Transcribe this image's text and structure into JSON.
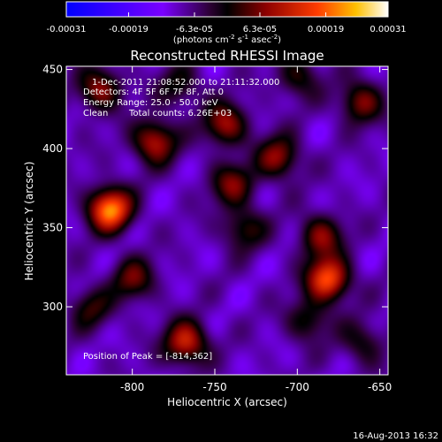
{
  "chart_data": {
    "type": "heatmap",
    "title": "Reconstructed RHESSI Image",
    "xlabel": "Heliocentric X (arcsec)",
    "ylabel": "Heliocentric Y (arcsec)",
    "xlim": [
      -840,
      -645
    ],
    "ylim": [
      257,
      452
    ],
    "x_ticks": [
      -800,
      -750,
      -700,
      -650
    ],
    "y_ticks": [
      300,
      350,
      400,
      450
    ],
    "x_tick_labels": [
      "-800",
      "-750",
      "-700",
      "-650"
    ],
    "y_tick_labels": [
      "300",
      "350",
      "400",
      "450"
    ],
    "colorbar": {
      "min": -0.00031,
      "max": 0.00031,
      "tick_values": [
        -0.00031,
        -0.00019,
        -6.3e-05,
        6.3e-05,
        0.00019,
        0.00031
      ],
      "tick_labels": [
        "-0.00031",
        "-0.00019",
        "-6.3e-05",
        "6.3e-05",
        "0.00019",
        "0.00031"
      ],
      "unit_label": "(photons cm",
      "unit_exp1": "-2",
      "unit_mid1": " s",
      "unit_exp2": "-1",
      "unit_mid2": " asec",
      "unit_exp3": "-2",
      "unit_end": ")"
    },
    "annotations": {
      "time_range": "1-Dec-2011 21:08:52.000 to 21:11:32.000",
      "detectors": "Detectors: 4F 5F 6F 7F 8F, Att 0",
      "energy_range": "Energy Range: 25.0 - 50.0 keV",
      "clean_label": "Clean",
      "total_counts": "Total counts: 6.26E+03",
      "peak_position": "Position of Peak = [-814,362]"
    },
    "peaks": [
      {
        "x": -814,
        "y": 362,
        "value": 0.00031
      },
      {
        "x": -682,
        "y": 318,
        "value": 0.00027
      },
      {
        "x": -768,
        "y": 278,
        "value": 0.00022
      },
      {
        "x": -787,
        "y": 405,
        "value": 0.0002
      },
      {
        "x": -744,
        "y": 416,
        "value": 0.00018
      },
      {
        "x": -820,
        "y": 438,
        "value": 0.00017
      },
      {
        "x": -712,
        "y": 395,
        "value": 0.00017
      },
      {
        "x": -662,
        "y": 430,
        "value": 0.00016
      },
      {
        "x": -800,
        "y": 318,
        "value": 0.00014
      },
      {
        "x": -686,
        "y": 345,
        "value": 0.00016
      },
      {
        "x": -740,
        "y": 378,
        "value": 0.00015
      },
      {
        "x": -733,
        "y": 350,
        "value": 0.00012
      },
      {
        "x": -694,
        "y": 292,
        "value": 0.00011
      },
      {
        "x": -826,
        "y": 300,
        "value": 0.00011
      },
      {
        "x": -661,
        "y": 278,
        "value": 0.0001
      },
      {
        "x": -772,
        "y": 440,
        "value": 0.0001
      },
      {
        "x": -700,
        "y": 446,
        "value": 0.00011
      }
    ]
  },
  "footer": {
    "date": "16-Aug-2013 16:32"
  }
}
